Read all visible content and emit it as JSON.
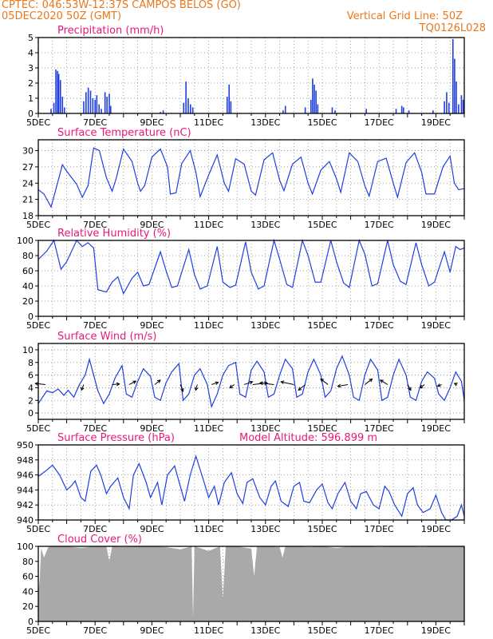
{
  "header": {
    "line1": "CPTEC:    046:53W-12:37S   CAMPOS BELOS (GO)",
    "line2": "05DEC2020 50Z (GMT)",
    "grid_note": "Vertical Grid Line: 50Z",
    "code": "TQ0126L028"
  },
  "colors": {
    "header": "#e8781e",
    "panel_title": "#e8187a",
    "series": "#1f3fe0",
    "bars": "#1f3fe0",
    "cloud": "#a9a9a9",
    "arrow": "#000000",
    "grid": "#888888"
  },
  "chart_data": [
    {
      "id": "precip",
      "type": "bar",
      "title": "Precipitation (mm/h)",
      "ylim": [
        0,
        5
      ],
      "yticks": [
        0,
        1,
        2,
        3,
        4,
        5
      ],
      "xticks": [
        "5DEC",
        "7DEC",
        "9DEC",
        "11DEC",
        "13DEC",
        "15DEC",
        "17DEC",
        "19DEC"
      ],
      "xlim_days": [
        0,
        15
      ],
      "values": [
        {
          "t": 0.45,
          "v": 0.3
        },
        {
          "t": 0.55,
          "v": 0.7
        },
        {
          "t": 0.62,
          "v": 2.9
        },
        {
          "t": 0.68,
          "v": 2.8
        },
        {
          "t": 0.72,
          "v": 2.6
        },
        {
          "t": 0.78,
          "v": 2.2
        },
        {
          "t": 0.85,
          "v": 1.1
        },
        {
          "t": 0.92,
          "v": 0.4
        },
        {
          "t": 1.6,
          "v": 0.8
        },
        {
          "t": 1.68,
          "v": 1.4
        },
        {
          "t": 1.76,
          "v": 1.7
        },
        {
          "t": 1.84,
          "v": 1.5
        },
        {
          "t": 1.92,
          "v": 1.0
        },
        {
          "t": 2.0,
          "v": 0.9
        },
        {
          "t": 2.06,
          "v": 1.2
        },
        {
          "t": 2.14,
          "v": 0.6
        },
        {
          "t": 2.22,
          "v": 0.3
        },
        {
          "t": 2.35,
          "v": 1.4
        },
        {
          "t": 2.42,
          "v": 1.1
        },
        {
          "t": 2.5,
          "v": 1.3
        },
        {
          "t": 2.55,
          "v": 0.5
        },
        {
          "t": 4.3,
          "v": 0.1
        },
        {
          "t": 4.4,
          "v": 0.2
        },
        {
          "t": 5.12,
          "v": 0.7
        },
        {
          "t": 5.2,
          "v": 2.1
        },
        {
          "t": 5.28,
          "v": 1.0
        },
        {
          "t": 5.36,
          "v": 0.6
        },
        {
          "t": 5.44,
          "v": 0.4
        },
        {
          "t": 6.65,
          "v": 1.1
        },
        {
          "t": 6.72,
          "v": 1.9
        },
        {
          "t": 6.78,
          "v": 0.8
        },
        {
          "t": 8.62,
          "v": 0.2
        },
        {
          "t": 8.7,
          "v": 0.5
        },
        {
          "t": 9.4,
          "v": 0.4
        },
        {
          "t": 9.6,
          "v": 0.9
        },
        {
          "t": 9.66,
          "v": 2.3
        },
        {
          "t": 9.72,
          "v": 1.9
        },
        {
          "t": 9.78,
          "v": 1.5
        },
        {
          "t": 9.84,
          "v": 0.6
        },
        {
          "t": 10.35,
          "v": 0.4
        },
        {
          "t": 10.45,
          "v": 0.2
        },
        {
          "t": 11.55,
          "v": 0.3
        },
        {
          "t": 12.6,
          "v": 0.3
        },
        {
          "t": 12.8,
          "v": 0.5
        },
        {
          "t": 12.86,
          "v": 0.4
        },
        {
          "t": 13.05,
          "v": 0.2
        },
        {
          "t": 13.9,
          "v": 0.2
        },
        {
          "t": 14.3,
          "v": 0.8
        },
        {
          "t": 14.38,
          "v": 1.4
        },
        {
          "t": 14.46,
          "v": 0.7
        },
        {
          "t": 14.6,
          "v": 4.9
        },
        {
          "t": 14.66,
          "v": 3.6
        },
        {
          "t": 14.72,
          "v": 2.1
        },
        {
          "t": 14.8,
          "v": 0.6
        },
        {
          "t": 14.9,
          "v": 1.2
        },
        {
          "t": 14.96,
          "v": 0.9
        }
      ]
    },
    {
      "id": "temp",
      "type": "line",
      "title": "Surface Temperature (nC)",
      "ylim": [
        18,
        32
      ],
      "yticks": [
        18,
        21,
        24,
        27,
        30
      ],
      "xticks": [
        "5DEC",
        "7DEC",
        "9DEC",
        "11DEC",
        "13DEC",
        "15DEC",
        "17DEC",
        "19DEC"
      ],
      "xlim_days": [
        0,
        15
      ],
      "x": [
        0,
        0.2,
        0.45,
        0.6,
        0.85,
        1.0,
        1.35,
        1.55,
        1.75,
        1.95,
        2.15,
        2.4,
        2.6,
        2.75,
        3.0,
        3.3,
        3.5,
        3.6,
        3.75,
        4.0,
        4.3,
        4.55,
        4.65,
        4.85,
        5.05,
        5.35,
        5.55,
        5.7,
        6.0,
        6.3,
        6.55,
        6.7,
        6.95,
        7.25,
        7.5,
        7.65,
        7.95,
        8.25,
        8.5,
        8.65,
        8.95,
        9.25,
        9.5,
        9.65,
        9.95,
        10.25,
        10.5,
        10.65,
        10.95,
        11.25,
        11.5,
        11.65,
        11.95,
        12.25,
        12.5,
        12.65,
        12.95,
        13.25,
        13.5,
        13.65,
        13.95,
        14.25,
        14.5,
        14.65,
        14.8,
        15.0
      ],
      "values": [
        22.8,
        22.0,
        19.6,
        22.5,
        27.4,
        26.2,
        23.8,
        21.4,
        23.5,
        30.5,
        30.0,
        25.0,
        22.5,
        25.0,
        30.3,
        28.0,
        24.0,
        22.5,
        23.6,
        28.8,
        30.3,
        27.0,
        22.0,
        22.2,
        27.6,
        30.0,
        26.0,
        21.5,
        25.5,
        29.2,
        24.0,
        22.5,
        28.5,
        27.5,
        22.5,
        21.8,
        28.3,
        29.6,
        24.5,
        22.6,
        27.5,
        28.8,
        24.0,
        22.0,
        26.4,
        28.0,
        24.8,
        22.3,
        29.6,
        28.0,
        23.5,
        21.6,
        28.0,
        28.6,
        24.0,
        21.4,
        27.8,
        29.6,
        26.0,
        22.0,
        22.0,
        27.0,
        29.0,
        24.0,
        22.8,
        23.0
      ]
    },
    {
      "id": "rh",
      "type": "line",
      "title": "Relative Humidity (%)",
      "ylim": [
        0,
        100
      ],
      "yticks": [
        0,
        20,
        40,
        60,
        80,
        100
      ],
      "xticks": [
        "5DEC",
        "7DEC",
        "9DEC",
        "11DEC",
        "13DEC",
        "15DEC",
        "17DEC",
        "19DEC"
      ],
      "xlim_days": [
        0,
        15
      ],
      "x": [
        0,
        0.3,
        0.55,
        0.8,
        1.0,
        1.35,
        1.55,
        1.75,
        1.95,
        2.1,
        2.4,
        2.6,
        2.8,
        3.0,
        3.3,
        3.5,
        3.7,
        3.9,
        4.3,
        4.5,
        4.7,
        4.9,
        5.3,
        5.5,
        5.7,
        5.95,
        6.3,
        6.5,
        6.75,
        6.95,
        7.3,
        7.5,
        7.75,
        7.95,
        8.3,
        8.5,
        8.75,
        8.95,
        9.3,
        9.5,
        9.75,
        9.95,
        10.3,
        10.5,
        10.75,
        10.95,
        11.3,
        11.5,
        11.75,
        11.95,
        12.3,
        12.5,
        12.75,
        12.95,
        13.3,
        13.5,
        13.75,
        13.95,
        14.3,
        14.5,
        14.7,
        14.85,
        15.0
      ],
      "values": [
        75,
        86,
        100,
        62,
        72,
        100,
        92,
        97,
        90,
        35,
        32,
        45,
        52,
        30,
        50,
        58,
        40,
        42,
        85,
        60,
        38,
        40,
        88,
        55,
        36,
        40,
        92,
        45,
        38,
        41,
        98,
        58,
        36,
        40,
        100,
        75,
        42,
        38,
        100,
        80,
        45,
        45,
        100,
        72,
        44,
        38,
        100,
        82,
        40,
        43,
        100,
        68,
        46,
        42,
        97,
        68,
        40,
        45,
        85,
        58,
        92,
        88,
        90
      ]
    },
    {
      "id": "wind",
      "type": "line",
      "title": "Surface Wind (m/s)",
      "ylim": [
        -1,
        11
      ],
      "yticks": [
        0,
        2,
        4,
        6,
        8,
        10
      ],
      "xticks": [
        "5DEC",
        "7DEC",
        "9DEC",
        "11DEC",
        "13DEC",
        "15DEC",
        "17DEC",
        "19DEC"
      ],
      "xlim_days": [
        0,
        15
      ],
      "x": [
        0,
        0.3,
        0.5,
        0.7,
        0.9,
        1.05,
        1.25,
        1.45,
        1.65,
        1.8,
        2.1,
        2.3,
        2.5,
        2.7,
        2.95,
        3.1,
        3.3,
        3.5,
        3.7,
        3.95,
        4.1,
        4.3,
        4.5,
        4.7,
        4.95,
        5.1,
        5.3,
        5.5,
        5.7,
        5.95,
        6.1,
        6.3,
        6.5,
        6.7,
        6.95,
        7.1,
        7.3,
        7.5,
        7.7,
        7.95,
        8.1,
        8.3,
        8.5,
        8.7,
        8.95,
        9.1,
        9.3,
        9.5,
        9.7,
        9.95,
        10.1,
        10.3,
        10.5,
        10.7,
        10.95,
        11.1,
        11.3,
        11.5,
        11.7,
        11.95,
        12.1,
        12.3,
        12.5,
        12.7,
        12.95,
        13.1,
        13.3,
        13.5,
        13.7,
        13.95,
        14.1,
        14.3,
        14.5,
        14.7,
        14.9,
        15.0
      ],
      "values": [
        1.5,
        3.5,
        3.2,
        3.8,
        2.8,
        3.6,
        2.5,
        4.5,
        6.0,
        8.5,
        3.5,
        1.5,
        3.0,
        5.5,
        7.5,
        3.0,
        2.5,
        5.0,
        7.0,
        5.8,
        2.5,
        2.0,
        4.8,
        6.5,
        7.8,
        2.0,
        3.0,
        6.0,
        7.0,
        4.5,
        1.0,
        3.0,
        6.0,
        7.5,
        8.0,
        3.0,
        2.5,
        6.8,
        8.2,
        6.5,
        2.5,
        3.0,
        6.0,
        8.5,
        7.0,
        2.5,
        3.0,
        6.5,
        8.5,
        6.0,
        2.5,
        3.5,
        7.0,
        9.0,
        6.0,
        2.5,
        2.0,
        6.0,
        8.5,
        6.8,
        2.0,
        2.5,
        6.0,
        8.5,
        6.0,
        2.5,
        2.0,
        5.0,
        6.5,
        5.5,
        3.0,
        2.0,
        4.0,
        6.5,
        5.0,
        2.0
      ],
      "arrows": [
        {
          "t": 0.25,
          "u": -1.8,
          "v": 0.2
        },
        {
          "t": 1.6,
          "u": -0.4,
          "v": -1.0
        },
        {
          "t": 2.6,
          "u": 1.3,
          "v": 0.1
        },
        {
          "t": 3.2,
          "u": 1.2,
          "v": 0.6
        },
        {
          "t": 4.1,
          "u": 1.0,
          "v": 0.8
        },
        {
          "t": 5.0,
          "u": 0.5,
          "v": -1.2
        },
        {
          "t": 5.6,
          "u": -0.3,
          "v": -1.0
        },
        {
          "t": 6.1,
          "u": 1.2,
          "v": 0.4
        },
        {
          "t": 6.9,
          "u": -0.8,
          "v": -0.6
        },
        {
          "t": 7.25,
          "u": 1.5,
          "v": 0.5
        },
        {
          "t": 7.55,
          "u": 2.6,
          "v": 0.3
        },
        {
          "t": 8.3,
          "u": -2.5,
          "v": 0.3
        },
        {
          "t": 9.0,
          "u": -2.3,
          "v": 0.5
        },
        {
          "t": 9.4,
          "u": -1.2,
          "v": -1.0
        },
        {
          "t": 10.2,
          "u": -1.3,
          "v": 1.0
        },
        {
          "t": 10.9,
          "u": -1.8,
          "v": -0.3
        },
        {
          "t": 11.5,
          "u": 1.3,
          "v": 1.0
        },
        {
          "t": 12.3,
          "u": -1.3,
          "v": 0.8
        },
        {
          "t": 13.0,
          "u": 0.6,
          "v": -1.0
        },
        {
          "t": 13.6,
          "u": -0.8,
          "v": -0.6
        },
        {
          "t": 14.2,
          "u": -0.7,
          "v": -0.3
        },
        {
          "t": 14.75,
          "u": -0.5,
          "v": 0.2
        }
      ]
    },
    {
      "id": "pressure",
      "type": "line",
      "title": "Surface Pressure (hPa)",
      "annotation": "Model Altitude: 596.899 m",
      "ylim": [
        940,
        950
      ],
      "yticks": [
        940,
        942,
        944,
        946,
        948,
        950
      ],
      "xticks": [
        "5DEC",
        "7DEC",
        "9DEC",
        "11DEC",
        "13DEC",
        "15DEC",
        "17DEC",
        "19DEC"
      ],
      "xlim_days": [
        0,
        15
      ],
      "x": [
        0,
        0.25,
        0.5,
        0.75,
        1.0,
        1.15,
        1.3,
        1.5,
        1.65,
        1.85,
        2.05,
        2.2,
        2.4,
        2.55,
        2.8,
        3.0,
        3.2,
        3.35,
        3.55,
        3.8,
        3.95,
        4.2,
        4.35,
        4.55,
        4.8,
        5.0,
        5.15,
        5.35,
        5.55,
        5.8,
        6.0,
        6.2,
        6.35,
        6.55,
        6.8,
        7.0,
        7.2,
        7.35,
        7.55,
        7.8,
        8.0,
        8.2,
        8.35,
        8.55,
        8.8,
        9.0,
        9.2,
        9.35,
        9.55,
        9.8,
        10.0,
        10.2,
        10.35,
        10.55,
        10.8,
        11.0,
        11.2,
        11.35,
        11.55,
        11.8,
        12.0,
        12.2,
        12.35,
        12.55,
        12.8,
        13.0,
        13.2,
        13.35,
        13.55,
        13.8,
        14.0,
        14.2,
        14.35,
        14.55,
        14.75,
        14.9,
        15.0
      ],
      "values": [
        945.8,
        946.5,
        947.3,
        946.0,
        944.0,
        944.5,
        945.2,
        943.0,
        942.5,
        946.5,
        947.3,
        946.0,
        943.5,
        944.5,
        945.6,
        943.0,
        941.5,
        946.0,
        947.5,
        945.0,
        943.0,
        945.0,
        942.0,
        946.0,
        947.2,
        944.5,
        942.5,
        946.0,
        948.5,
        945.5,
        943.0,
        944.5,
        942.0,
        945.0,
        946.3,
        943.5,
        942.2,
        945.0,
        945.5,
        943.0,
        942.0,
        944.5,
        945.2,
        942.5,
        941.8,
        944.5,
        945.0,
        942.5,
        942.3,
        944.0,
        944.8,
        942.3,
        941.5,
        943.5,
        945.0,
        942.5,
        941.5,
        943.5,
        943.8,
        942.0,
        941.5,
        944.5,
        943.8,
        942.0,
        940.5,
        943.5,
        944.3,
        942.0,
        941.0,
        941.5,
        943.3,
        941.0,
        940.0,
        940.0,
        940.5,
        942.0,
        940.5
      ]
    },
    {
      "id": "cloud",
      "type": "area",
      "title": "Cloud Cover (%)",
      "ylim": [
        0,
        100
      ],
      "yticks": [
        0,
        20,
        40,
        60,
        80,
        100
      ],
      "xticks": [
        "5DEC",
        "7DEC",
        "9DEC",
        "11DEC",
        "13DEC",
        "15DEC",
        "17DEC",
        "19DEC"
      ],
      "xlim_days": [
        0,
        15
      ],
      "x": [
        0,
        0.05,
        0.1,
        0.2,
        0.35,
        0.6,
        1.0,
        1.5,
        2.0,
        2.4,
        2.5,
        2.6,
        3.0,
        3.5,
        4.0,
        4.5,
        5.0,
        5.4,
        5.45,
        5.5,
        6.0,
        6.4,
        6.5,
        6.6,
        7.0,
        7.5,
        7.6,
        7.7,
        8.0,
        8.5,
        8.6,
        8.7,
        9.0,
        9.5,
        10.0,
        10.5,
        11.0,
        11.5,
        12.0,
        12.5,
        13.0,
        13.5,
        14.0,
        14.5,
        15.0
      ],
      "values": [
        40,
        55,
        98,
        85,
        99,
        100,
        100,
        98,
        100,
        100,
        80,
        100,
        99,
        100,
        100,
        99,
        96,
        100,
        5,
        100,
        94,
        100,
        30,
        100,
        100,
        97,
        60,
        100,
        100,
        99,
        85,
        100,
        100,
        99,
        100,
        98,
        100,
        100,
        99,
        100,
        100,
        99,
        100,
        100,
        100
      ]
    }
  ]
}
